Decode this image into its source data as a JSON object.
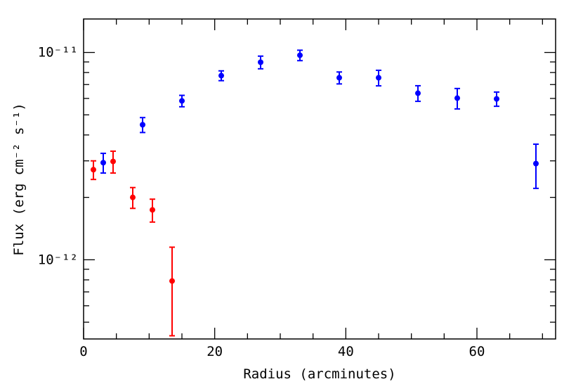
{
  "chart_data": {
    "type": "scatter",
    "xlabel": "Radius (arcminutes)",
    "ylabel": "Flux (erg cm⁻² s⁻¹)",
    "xlim": [
      0,
      72
    ],
    "xticks": [
      0,
      20,
      40,
      60
    ],
    "xminorticks": [
      5,
      10,
      15,
      25,
      30,
      35,
      45,
      50,
      55,
      65,
      70
    ],
    "ylim": [
      4.15e-13,
      1.45e-11
    ],
    "ylog": true,
    "yticks": [
      {
        "value": 1e-11,
        "label": "10⁻¹¹"
      },
      {
        "value": 1e-12,
        "label": "10⁻¹²"
      }
    ],
    "yminorticks": [
      5e-13,
      6e-13,
      7e-13,
      8e-13,
      9e-13,
      2e-12,
      3e-12,
      4e-12,
      5e-12,
      6e-12,
      7e-12,
      8e-12,
      9e-12
    ],
    "series": [
      {
        "color": "#ff0000",
        "x": [
          1.5,
          4.5,
          7.5,
          10.5,
          13.5
        ],
        "values": [
          2.72e-12,
          2.98e-12,
          2e-12,
          1.74e-12,
          7.9e-13
        ],
        "errors": [
          2.8e-13,
          3.6e-13,
          2.3e-13,
          2.2e-13,
          3.6e-13
        ]
      },
      {
        "color": "#0000ff",
        "x": [
          3,
          9,
          15,
          21,
          27,
          33,
          39,
          45,
          51,
          57,
          63,
          69
        ],
        "values": [
          2.94e-12,
          4.48e-12,
          5.84e-12,
          7.73e-12,
          8.97e-12,
          9.69e-12,
          7.55e-12,
          7.55e-12,
          6.36e-12,
          6.02e-12,
          5.97e-12,
          2.91e-12
        ],
        "errors": [
          3.2e-13,
          3.7e-13,
          3.7e-13,
          4.2e-13,
          6.3e-13,
          5.6e-13,
          5e-13,
          6.5e-13,
          5.5e-13,
          6.8e-13,
          4.7e-13,
          7e-13
        ]
      }
    ]
  }
}
